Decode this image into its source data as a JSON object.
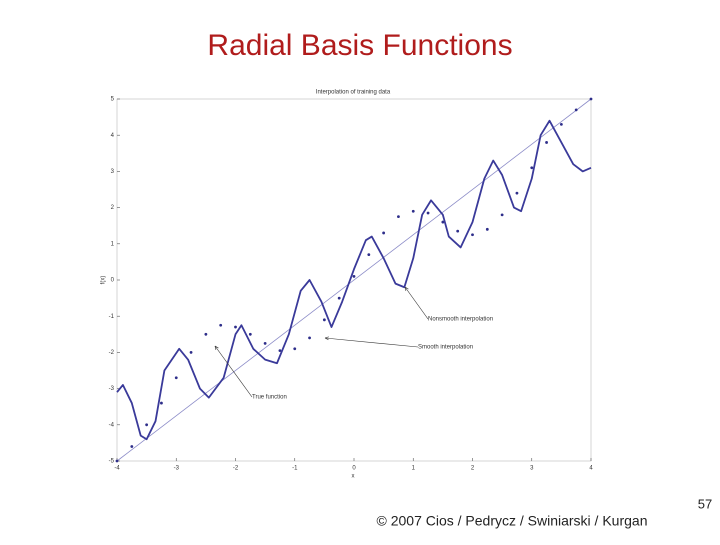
{
  "slide": {
    "title": "Radial Basis Functions",
    "footer": "© 2007 Cios / Pedrycz / Swiniarski / Kurgan",
    "page_number": "57"
  },
  "chart_data": {
    "type": "line",
    "title": "Interpolation of training data",
    "x_label": "x",
    "y_label": "f(x)",
    "xlim": [
      -4,
      4
    ],
    "ylim": [
      -5,
      5
    ],
    "xticks": [
      -4,
      -3,
      -2,
      -1,
      0,
      1,
      2,
      3,
      4
    ],
    "yticks": [
      -5,
      -4,
      -3,
      -2,
      -1,
      0,
      1,
      2,
      3,
      4,
      5
    ],
    "series": [
      {
        "name": "True function",
        "color": "#8c8cc8",
        "style": "line",
        "x": [
          -4,
          4
        ],
        "values": [
          -5,
          5
        ]
      },
      {
        "name": "Smooth interpolation",
        "color": "#2e2e8a",
        "style": "dots",
        "x": [
          -4,
          -3.75,
          -3.5,
          -3.25,
          -3,
          -2.75,
          -2.5,
          -2.25,
          -2,
          -1.75,
          -1.5,
          -1.25,
          -1,
          -0.75,
          -0.5,
          -0.25,
          0,
          0.25,
          0.5,
          0.75,
          1,
          1.25,
          1.5,
          1.75,
          2,
          2.25,
          2.5,
          2.75,
          3,
          3.25,
          3.5,
          3.75,
          4
        ],
        "values": [
          -5,
          -4.6,
          -4.0,
          -3.4,
          -2.7,
          -2.0,
          -1.5,
          -1.25,
          -1.3,
          -1.5,
          -1.75,
          -1.95,
          -1.9,
          -1.6,
          -1.1,
          -0.5,
          0.1,
          0.7,
          1.3,
          1.75,
          1.9,
          1.85,
          1.6,
          1.35,
          1.25,
          1.4,
          1.8,
          2.4,
          3.1,
          3.8,
          4.3,
          4.7,
          5.0
        ]
      },
      {
        "name": "Nonsmooth interpolation",
        "color": "#3a3a9a",
        "style": "thick",
        "x": [
          -4,
          -3.9,
          -3.75,
          -3.6,
          -3.5,
          -3.35,
          -3.2,
          -2.95,
          -2.8,
          -2.6,
          -2.45,
          -2.2,
          -2.0,
          -1.9,
          -1.7,
          -1.5,
          -1.3,
          -1.1,
          -0.9,
          -0.75,
          -0.55,
          -0.38,
          -0.2,
          0,
          0.2,
          0.3,
          0.5,
          0.7,
          0.85,
          1.0,
          1.15,
          1.3,
          1.5,
          1.6,
          1.8,
          2.0,
          2.2,
          2.35,
          2.5,
          2.7,
          2.82,
          3.0,
          3.15,
          3.3,
          3.5,
          3.7,
          3.86,
          4.0
        ],
        "values": [
          -3.1,
          -2.9,
          -3.4,
          -4.3,
          -4.4,
          -3.9,
          -2.5,
          -1.9,
          -2.2,
          -3.0,
          -3.25,
          -2.7,
          -1.5,
          -1.25,
          -1.9,
          -2.2,
          -2.3,
          -1.5,
          -0.3,
          0.0,
          -0.6,
          -1.3,
          -0.6,
          0.3,
          1.1,
          1.2,
          0.6,
          -0.1,
          -0.2,
          0.6,
          1.8,
          2.2,
          1.8,
          1.2,
          0.9,
          1.6,
          2.8,
          3.3,
          2.9,
          2.0,
          1.9,
          2.8,
          4.0,
          4.4,
          3.8,
          3.2,
          3.0,
          3.1
        ]
      }
    ]
  }
}
